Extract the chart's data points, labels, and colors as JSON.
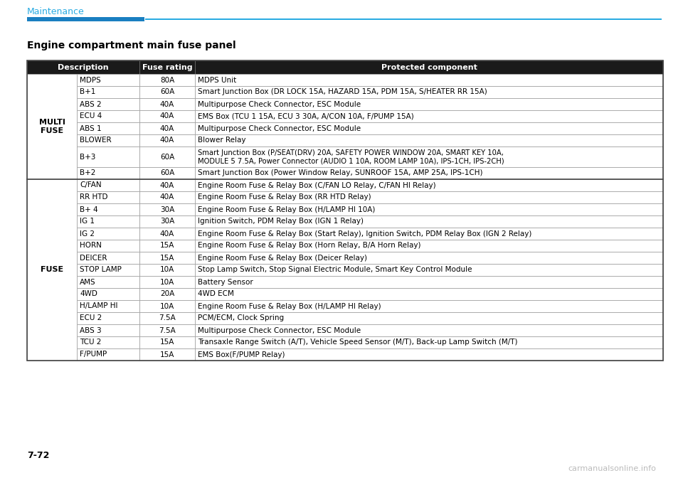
{
  "title": "Engine compartment main fuse panel",
  "page_label": "7-72",
  "section_header": "Maintenance",
  "rows": [
    {
      "group": "MULTI\nFUSE",
      "description": "MDPS",
      "fuse_rating": "80A",
      "protected_component": "MDPS Unit",
      "double_line": false
    },
    {
      "group": "MULTI\nFUSE",
      "description": "B+1",
      "fuse_rating": "60A",
      "protected_component": "Smart Junction Box (DR LOCK 15A, HAZARD 15A, PDM 15A, S/HEATER RR 15A)",
      "double_line": false
    },
    {
      "group": "MULTI\nFUSE",
      "description": "ABS 2",
      "fuse_rating": "40A",
      "protected_component": "Multipurpose Check Connector, ESC Module",
      "double_line": false
    },
    {
      "group": "MULTI\nFUSE",
      "description": "ECU 4",
      "fuse_rating": "40A",
      "protected_component": "EMS Box (TCU 1 15A, ECU 3 30A, A/CON 10A, F/PUMP 15A)",
      "double_line": false
    },
    {
      "group": "MULTI\nFUSE",
      "description": "ABS 1",
      "fuse_rating": "40A",
      "protected_component": "Multipurpose Check Connector, ESC Module",
      "double_line": false
    },
    {
      "group": "MULTI\nFUSE",
      "description": "BLOWER",
      "fuse_rating": "40A",
      "protected_component": "Blower Relay",
      "double_line": false
    },
    {
      "group": "MULTI\nFUSE",
      "description": "B+3",
      "fuse_rating": "60A",
      "protected_component": "Smart Junction Box (P/SEAT(DRV) 20A, SAFETY POWER WINDOW 20A, SMART KEY 10A,\nMODULE 5 7.5A, Power Connector (AUDIO 1 10A, ROOM LAMP 10A), IPS-1CH, IPS-2CH)",
      "double_line": true
    },
    {
      "group": "MULTI\nFUSE",
      "description": "B+2",
      "fuse_rating": "60A",
      "protected_component": "Smart Junction Box (Power Window Relay, SUNROOF 15A, AMP 25A, IPS-1CH)",
      "double_line": false
    },
    {
      "group": "FUSE",
      "description": "C/FAN",
      "fuse_rating": "40A",
      "protected_component": "Engine Room Fuse & Relay Box (C/FAN LO Relay, C/FAN HI Relay)",
      "double_line": false
    },
    {
      "group": "FUSE",
      "description": "RR HTD",
      "fuse_rating": "40A",
      "protected_component": "Engine Room Fuse & Relay Box (RR HTD Relay)",
      "double_line": false
    },
    {
      "group": "FUSE",
      "description": "B+ 4",
      "fuse_rating": "30A",
      "protected_component": "Engine Room Fuse & Relay Box (H/LAMP HI 10A)",
      "double_line": false
    },
    {
      "group": "FUSE",
      "description": "IG 1",
      "fuse_rating": "30A",
      "protected_component": "Ignition Switch, PDM Relay Box (IGN 1 Relay)",
      "double_line": false
    },
    {
      "group": "FUSE",
      "description": "IG 2",
      "fuse_rating": "40A",
      "protected_component": "Engine Room Fuse & Relay Box (Start Relay), Ignition Switch, PDM Relay Box (IGN 2 Relay)",
      "double_line": false
    },
    {
      "group": "FUSE",
      "description": "HORN",
      "fuse_rating": "15A",
      "protected_component": "Engine Room Fuse & Relay Box (Horn Relay, B/A Horn Relay)",
      "double_line": false
    },
    {
      "group": "FUSE",
      "description": "DEICER",
      "fuse_rating": "15A",
      "protected_component": "Engine Room Fuse & Relay Box (Deicer Relay)",
      "double_line": false
    },
    {
      "group": "FUSE",
      "description": "STOP LAMP",
      "fuse_rating": "10A",
      "protected_component": "Stop Lamp Switch, Stop Signal Electric Module, Smart Key Control Module",
      "double_line": false
    },
    {
      "group": "FUSE",
      "description": "AMS",
      "fuse_rating": "10A",
      "protected_component": "Battery Sensor",
      "double_line": false
    },
    {
      "group": "FUSE",
      "description": "4WD",
      "fuse_rating": "20A",
      "protected_component": "4WD ECM",
      "double_line": false
    },
    {
      "group": "FUSE",
      "description": "H/LAMP HI",
      "fuse_rating": "10A",
      "protected_component": "Engine Room Fuse & Relay Box (H/LAMP HI Relay)",
      "double_line": false
    },
    {
      "group": "FUSE",
      "description": "ECU 2",
      "fuse_rating": "7.5A",
      "protected_component": "PCM/ECM, Clock Spring",
      "double_line": false
    },
    {
      "group": "FUSE",
      "description": "ABS 3",
      "fuse_rating": "7.5A",
      "protected_component": "Multipurpose Check Connector, ESC Module",
      "double_line": false
    },
    {
      "group": "FUSE",
      "description": "TCU 2",
      "fuse_rating": "15A",
      "protected_component": "Transaxle Range Switch (A/T), Vehicle Speed Sensor (M/T), Back-up Lamp Switch (M/T)",
      "double_line": false
    },
    {
      "group": "FUSE",
      "description": "F/PUMP",
      "fuse_rating": "15A",
      "protected_component": "EMS Box(F/PUMP Relay)",
      "double_line": false
    }
  ],
  "section_color": "#29abe2",
  "bar_color_thick": "#1a7fc1",
  "bar_color_thin": "#29abe2",
  "header_bg": "#1a1a1a",
  "header_text_color": "#ffffff",
  "border_color": "#999999",
  "text_color": "#000000",
  "title_color": "#000000",
  "watermark_color": "#bbbbbb"
}
